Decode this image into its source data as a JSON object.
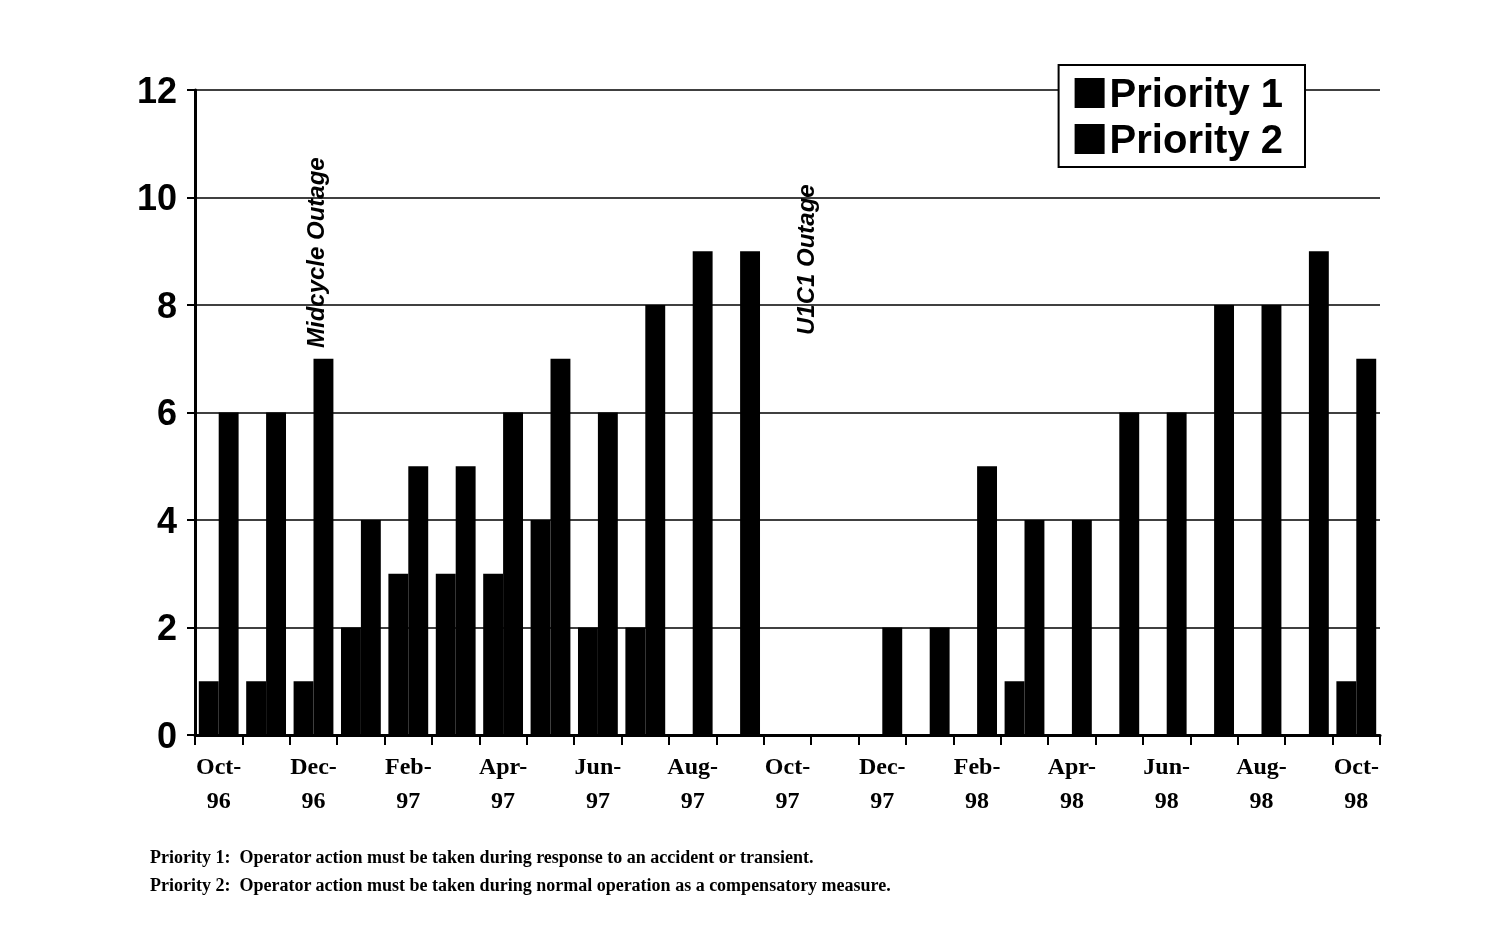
{
  "chart_data": {
    "type": "bar",
    "categories": [
      "Oct-96",
      null,
      "Dec-96",
      null,
      "Feb-97",
      null,
      "Apr-97",
      null,
      "Jun-97",
      null,
      "Aug-97",
      null,
      "Oct-97",
      null,
      "Dec-97",
      null,
      "Feb-98",
      null,
      "Apr-98",
      null,
      "Jun-98",
      null,
      "Aug-98",
      null,
      "Oct-98"
    ],
    "series": [
      {
        "name": "Priority 1",
        "color": "#000000",
        "values": [
          1,
          1,
          1,
          2,
          3,
          3,
          3,
          4,
          2,
          2,
          0,
          0,
          0,
          0,
          0,
          0,
          0,
          1,
          0,
          0,
          0,
          0,
          0,
          0,
          1
        ]
      },
      {
        "name": "Priority 2",
        "color": "#000000",
        "values": [
          6,
          6,
          7,
          4,
          5,
          5,
          6,
          7,
          6,
          8,
          9,
          9,
          0,
          0,
          2,
          2,
          5,
          4,
          4,
          6,
          6,
          8,
          8,
          9,
          7
        ]
      }
    ],
    "ylim": [
      0,
      12
    ],
    "yticks": [
      0,
      2,
      4,
      6,
      8,
      10,
      12
    ],
    "grid": "y",
    "legend": "top right",
    "annotations": [
      "Midcycle Outage",
      "U1C1 Outage",
      "Priority 1:  Operator action must be taken during response to an accident or transient.",
      "Priority 2:  Operator action must be taken during normal operation as a compensatory measure."
    ]
  }
}
